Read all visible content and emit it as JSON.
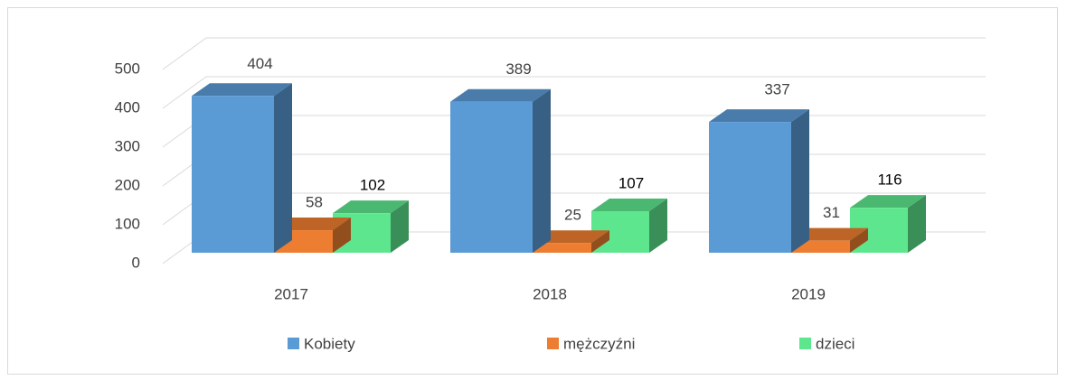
{
  "chart_data": {
    "type": "bar3d",
    "categories": [
      "2017",
      "2018",
      "2019"
    ],
    "series": [
      {
        "name": "Kobiety",
        "color": "#5b9bd5",
        "values": [
          404,
          389,
          337
        ]
      },
      {
        "name": "mężczyźni",
        "color": "#ed7d31",
        "values": [
          58,
          25,
          31
        ]
      },
      {
        "name": "dzieci",
        "color": "#5ee68e",
        "values": [
          102,
          107,
          116
        ]
      }
    ],
    "ylim": [
      0,
      500
    ],
    "yticks": [
      0,
      100,
      200,
      300,
      400,
      500
    ],
    "grid": true,
    "legend": "bottom"
  }
}
